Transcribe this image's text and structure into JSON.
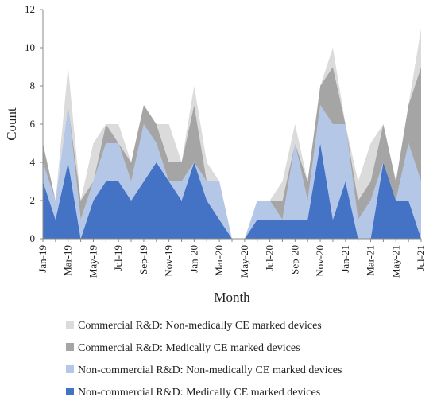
{
  "chart_data": {
    "type": "area",
    "stacked": true,
    "xlabel": "Month",
    "ylabel": "Count",
    "ylim": [
      0,
      12
    ],
    "yticks": [
      0,
      2,
      4,
      6,
      8,
      10,
      12
    ],
    "x": [
      "Jan-19",
      "Feb-19",
      "Mar-19",
      "Apr-19",
      "May-19",
      "Jun-19",
      "Jul-19",
      "Aug-19",
      "Sep-19",
      "Oct-19",
      "Nov-19",
      "Dec-19",
      "Jan-20",
      "Feb-20",
      "Mar-20",
      "Apr-20",
      "May-20",
      "Jun-20",
      "Jul-20",
      "Aug-20",
      "Sep-20",
      "Oct-20",
      "Nov-20",
      "Dec-20",
      "Jan-21",
      "Feb-21",
      "Mar-21",
      "Apr-21",
      "May-21",
      "Jun-21",
      "Jul-21"
    ],
    "x_tick_labels": [
      "Jan-19",
      "Mar-19",
      "May-19",
      "Jul-19",
      "Sep-19",
      "Nov-19",
      "Jan-20",
      "Mar-20",
      "May-20",
      "Jul-20",
      "Sep-20",
      "Nov-20",
      "Jan-21",
      "Mar-21",
      "May-21",
      "Jul-21"
    ],
    "grid": false,
    "legend_position": "bottom",
    "series": [
      {
        "name": "Non-commercial R&D: Medically CE marked devices",
        "color": "#4472C4",
        "values": [
          3,
          1,
          4,
          0,
          2,
          3,
          3,
          2,
          3,
          4,
          3,
          2,
          4,
          2,
          1,
          0,
          0,
          1,
          1,
          1,
          1,
          1,
          5,
          1,
          3,
          0,
          0,
          4,
          2,
          2,
          0
        ]
      },
      {
        "name": "Non-commercial R&D: Non-medically CE marked devices",
        "color": "#B4C7E7",
        "values": [
          1,
          1,
          3,
          1,
          1,
          2,
          2,
          1,
          3,
          1,
          0,
          1,
          0,
          1,
          2,
          0,
          0,
          1,
          1,
          0,
          4,
          1,
          2,
          5,
          3,
          1,
          2,
          0,
          0,
          3,
          3
        ]
      },
      {
        "name": "Commercial R&D: Medically CE marked devices",
        "color": "#A5A5A5",
        "values": [
          1,
          0,
          0,
          1,
          0,
          1,
          0,
          1,
          1,
          1,
          1,
          1,
          3,
          0,
          0,
          0,
          0,
          0,
          0,
          1,
          0,
          1,
          1,
          3,
          0,
          1,
          1,
          2,
          1,
          2,
          6
        ]
      },
      {
        "name": "Commercial R&D: Non-medically CE marked devices",
        "color": "#DBDBDB",
        "values": [
          0,
          0,
          2,
          0,
          2,
          0,
          1,
          0,
          0,
          0,
          2,
          0,
          1,
          1,
          0,
          0,
          0,
          0,
          0,
          1,
          1,
          0,
          0,
          1,
          0,
          1,
          2,
          0,
          0,
          0,
          2
        ]
      }
    ],
    "legend_order": [
      3,
      2,
      1,
      0
    ]
  }
}
